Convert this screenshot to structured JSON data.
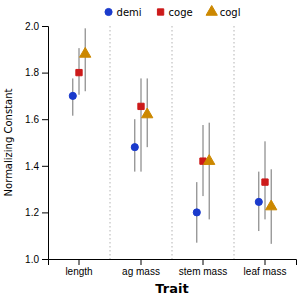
{
  "chart_data": {
    "type": "scatter",
    "xlabel": "Trait",
    "ylabel": "Normalizing Constant",
    "categories": [
      "length",
      "ag mass",
      "stem mass",
      "leaf mass"
    ],
    "ylim": [
      1,
      2
    ],
    "yticks": [
      {
        "value": 1,
        "label": "1.0"
      },
      1.2,
      1.4,
      1.6,
      1.8,
      {
        "value": 2,
        "label": "2.0"
      }
    ],
    "grid": false,
    "legend": "top",
    "series": [
      {
        "name": "demi",
        "color": "#1a3acc",
        "marker": "circle",
        "values": [
          1.7,
          1.48,
          1.2,
          1.245
        ],
        "ci_low": [
          1.615,
          1.375,
          1.07,
          1.12
        ],
        "ci_high": [
          1.775,
          1.6,
          1.33,
          1.375
        ]
      },
      {
        "name": "coge",
        "color": "#cc1a1a",
        "marker": "square",
        "values": [
          1.8,
          1.655,
          1.42,
          1.33
        ],
        "ci_low": [
          1.705,
          1.375,
          1.27,
          1.17
        ],
        "ci_high": [
          1.905,
          1.775,
          1.575,
          1.505
        ]
      },
      {
        "name": "cogl",
        "color": "#cc8800",
        "marker": "triangle",
        "values": [
          1.88,
          1.62,
          1.42,
          1.225
        ],
        "ci_low": [
          1.72,
          1.48,
          1.17,
          1.065
        ],
        "ci_high": [
          1.99,
          1.775,
          1.585,
          1.385
        ]
      }
    ]
  }
}
